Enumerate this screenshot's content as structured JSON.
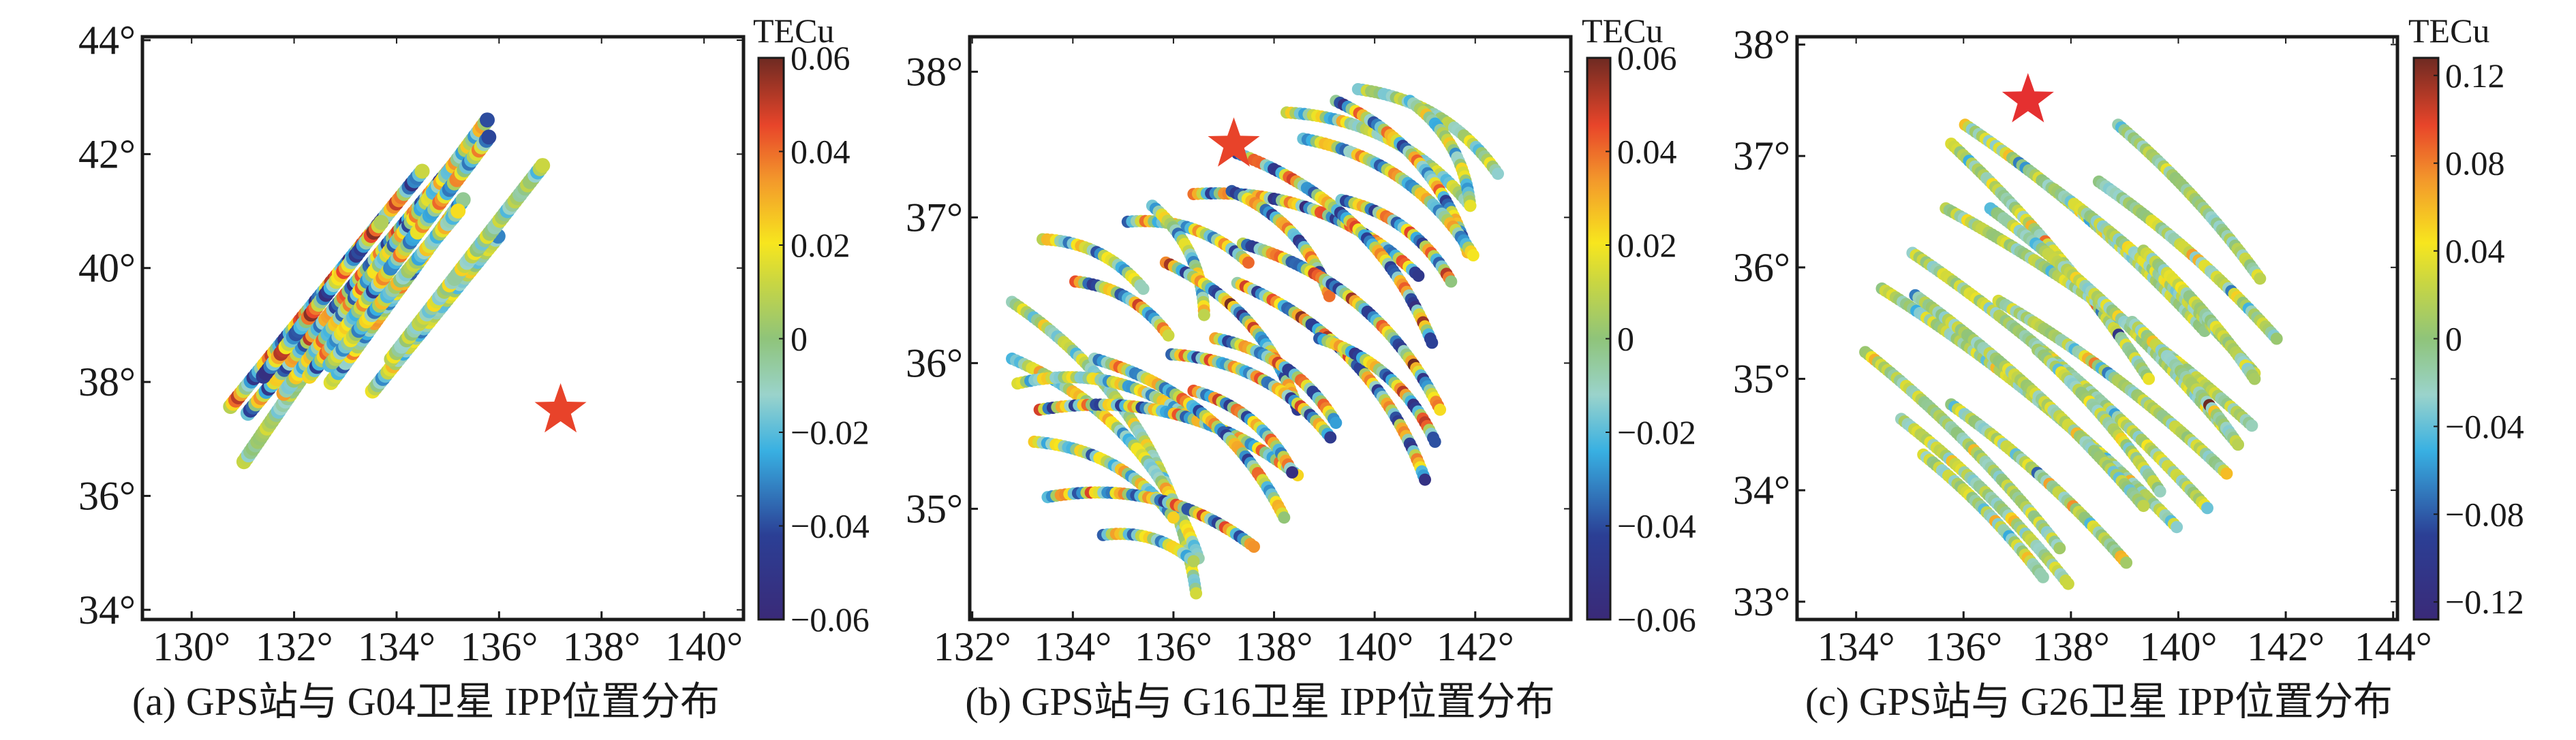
{
  "chart_data": [
    {
      "type": "scatter",
      "caption": "(a) GPS站与 G04卫星 IPP位置分布",
      "xlim": [
        129.04,
        140.77
      ],
      "ylim": [
        33.83,
        44.06
      ],
      "xticks": [
        130,
        132,
        134,
        136,
        138,
        140
      ],
      "xtick_labels": [
        "130°",
        "132°",
        "134°",
        "136°",
        "138°",
        "140°"
      ],
      "yticks": [
        34,
        36,
        38,
        40,
        42,
        44
      ],
      "ytick_labels": [
        "34°",
        "36°",
        "38°",
        "40°",
        "42°",
        "44°"
      ],
      "colorbar": {
        "label": "TECu",
        "clim": [
          -0.06,
          0.06
        ],
        "ticks": [
          0.06,
          0.04,
          0.02,
          0,
          -0.02,
          -0.04,
          -0.06
        ],
        "tick_labels": [
          "0.06",
          "0.04",
          "0.02",
          "0",
          "−0.02",
          "−0.04",
          "−0.06"
        ]
      },
      "epicenter": {
        "lon": 137.2,
        "lat": 37.5,
        "marker": "red star",
        "color": "#e8432a"
      },
      "tracks": [
        {
          "from": [
            130.76,
            37.57
          ],
          "to": [
            134.5,
            41.7
          ],
          "amp": 0.9
        },
        {
          "from": [
            131.1,
            37.45
          ],
          "to": [
            135.2,
            41.9
          ],
          "amp": 0.8
        },
        {
          "from": [
            131.02,
            36.6
          ],
          "to": [
            133.0,
            39.2
          ],
          "amp": 0.15
        },
        {
          "from": [
            131.4,
            38.1
          ],
          "to": [
            133.7,
            40.8
          ],
          "amp": 0.9
        },
        {
          "from": [
            131.8,
            37.8
          ],
          "to": [
            135.77,
            42.6
          ],
          "amp": 0.6
        },
        {
          "from": [
            132.3,
            38.1
          ],
          "to": [
            135.8,
            42.3
          ],
          "amp": 0.7
        },
        {
          "from": [
            132.72,
            37.99
          ],
          "to": [
            135.3,
            41.2
          ],
          "amp": 0.6
        },
        {
          "from": [
            132.7,
            38.3
          ],
          "to": [
            135.2,
            41.0
          ],
          "amp": 0.5
        },
        {
          "from": [
            133.53,
            37.84
          ],
          "to": [
            135.98,
            40.56
          ],
          "amp": 0.45
        },
        {
          "from": [
            133.9,
            38.4
          ],
          "to": [
            136.85,
            41.8
          ],
          "amp": 0.3
        }
      ]
    },
    {
      "type": "scatter",
      "caption": "(b) GPS站与 G16卫星 IPP位置分布",
      "xlim": [
        131.95,
        143.9
      ],
      "ylim": [
        34.24,
        38.24
      ],
      "xticks": [
        132,
        134,
        136,
        138,
        140,
        142
      ],
      "xtick_labels": [
        "132°",
        "134°",
        "136°",
        "138°",
        "140°",
        "142°"
      ],
      "yticks": [
        35,
        36,
        37,
        38
      ],
      "ytick_labels": [
        "35°",
        "36°",
        "37°",
        "38°"
      ],
      "colorbar": {
        "label": "TECu",
        "clim": [
          -0.06,
          0.06
        ],
        "ticks": [
          0.06,
          0.04,
          0.02,
          0,
          -0.02,
          -0.04,
          -0.06
        ],
        "tick_labels": [
          "0.06",
          "0.04",
          "0.02",
          "0",
          "−0.02",
          "−0.04",
          "−0.06"
        ]
      },
      "epicenter": {
        "lon": 137.2,
        "lat": 37.5,
        "marker": "red star",
        "color": "#e8432a"
      },
      "tracks": [
        {
          "from": [
            132.79,
            36.42
          ],
          "to": [
            136.45,
            34.42
          ],
          "amp": 0.3
        },
        {
          "from": [
            132.79,
            36.03
          ],
          "to": [
            136.5,
            34.66
          ],
          "amp": 0.5
        },
        {
          "from": [
            132.9,
            35.86
          ],
          "to": [
            136.23,
            35.65
          ],
          "amp": 0.5
        },
        {
          "from": [
            133.34,
            35.68
          ],
          "to": [
            138.47,
            35.23
          ],
          "amp": 0.8
        },
        {
          "from": [
            133.23,
            35.46
          ],
          "to": [
            136.0,
            34.94
          ],
          "amp": 0.6
        },
        {
          "from": [
            133.5,
            35.08
          ],
          "to": [
            137.6,
            34.74
          ],
          "amp": 0.8
        },
        {
          "from": [
            134.6,
            34.82
          ],
          "to": [
            136.4,
            34.64
          ],
          "amp": 0.6
        },
        {
          "from": [
            133.4,
            36.85
          ],
          "to": [
            135.4,
            36.51
          ],
          "amp": 0.6
        },
        {
          "from": [
            134.05,
            36.56
          ],
          "to": [
            135.9,
            36.19
          ],
          "amp": 0.8
        },
        {
          "from": [
            134.43,
            36.03
          ],
          "to": [
            138.2,
            34.94
          ],
          "amp": 0.8
        },
        {
          "from": [
            135.09,
            36.97
          ],
          "to": [
            137.49,
            36.69
          ],
          "amp": 0.7
        },
        {
          "from": [
            135.58,
            37.08
          ],
          "to": [
            136.61,
            36.33
          ],
          "amp": 0.5
        },
        {
          "from": [
            135.85,
            36.69
          ],
          "to": [
            138.47,
            35.68
          ],
          "amp": 0.9
        },
        {
          "from": [
            136.4,
            37.16
          ],
          "to": [
            140.87,
            36.6
          ],
          "amp": 0.9
        },
        {
          "from": [
            137.16,
            37.18
          ],
          "to": [
            139.1,
            36.46
          ],
          "amp": 0.9
        },
        {
          "from": [
            137.27,
            37.44
          ],
          "to": [
            141.14,
            36.14
          ],
          "amp": 0.9
        },
        {
          "from": [
            138.25,
            37.72
          ],
          "to": [
            141.9,
            37.08
          ],
          "amp": 0.5
        },
        {
          "from": [
            139.23,
            37.8
          ],
          "to": [
            141.85,
            36.76
          ],
          "amp": 0.8
        },
        {
          "from": [
            139.67,
            37.88
          ],
          "to": [
            142.45,
            37.3
          ],
          "amp": 0.3
        },
        {
          "from": [
            140.7,
            37.8
          ],
          "to": [
            141.9,
            37.08
          ],
          "amp": 0.4
        },
        {
          "from": [
            137.38,
            36.82
          ],
          "to": [
            141.3,
            35.68
          ],
          "amp": 0.9
        },
        {
          "from": [
            137.27,
            36.55
          ],
          "to": [
            141.0,
            35.2
          ],
          "amp": 0.9
        },
        {
          "from": [
            136.83,
            36.17
          ],
          "to": [
            139.23,
            35.59
          ],
          "amp": 0.9
        },
        {
          "from": [
            135.96,
            36.06
          ],
          "to": [
            139.12,
            35.49
          ],
          "amp": 0.8
        },
        {
          "from": [
            136.4,
            35.81
          ],
          "to": [
            138.36,
            35.25
          ],
          "amp": 0.9
        },
        {
          "from": [
            138.9,
            36.17
          ],
          "to": [
            141.2,
            35.46
          ],
          "amp": 0.9
        },
        {
          "from": [
            138.58,
            37.54
          ],
          "to": [
            141.96,
            36.74
          ],
          "amp": 0.6
        },
        {
          "from": [
            139.34,
            37.12
          ],
          "to": [
            141.52,
            36.56
          ],
          "amp": 0.8
        }
      ]
    },
    {
      "type": "scatter",
      "caption": "(c) GPS站与 G26卫星 IPP位置分布",
      "xlim": [
        132.9,
        144.08
      ],
      "ylim": [
        32.84,
        38.07
      ],
      "xticks": [
        134,
        136,
        138,
        140,
        142,
        144
      ],
      "xtick_labels": [
        "134°",
        "136°",
        "138°",
        "140°",
        "142°",
        "144°"
      ],
      "yticks": [
        33,
        34,
        35,
        36,
        37,
        38
      ],
      "ytick_labels": [
        "33°",
        "34°",
        "35°",
        "36°",
        "37°",
        "38°"
      ],
      "colorbar": {
        "label": "TECu",
        "clim": [
          -0.128,
          0.128
        ],
        "ticks": [
          0.12,
          0.08,
          0.04,
          0,
          -0.04,
          -0.08,
          -0.12
        ],
        "tick_labels": [
          "0.12",
          "0.08",
          "0.04",
          "0",
          "−0.04",
          "−0.08",
          "−0.12"
        ]
      },
      "epicenter": {
        "lon": 137.2,
        "lat": 37.5,
        "marker": "red star",
        "color": "#e53030"
      },
      "tracks": [
        {
          "from": [
            136.03,
            37.28
          ],
          "to": [
            140.49,
            35.43
          ],
          "amp": 0.6
        },
        {
          "from": [
            135.77,
            37.11
          ],
          "to": [
            139.45,
            35.0
          ],
          "amp": 0.7
        },
        {
          "from": [
            135.67,
            36.53
          ],
          "to": [
            141.37,
            34.58
          ],
          "amp": 0.6
        },
        {
          "from": [
            136.5,
            36.53
          ],
          "to": [
            141.11,
            34.41
          ],
          "amp": 0.4
        },
        {
          "from": [
            137.69,
            36.7
          ],
          "to": [
            141.42,
            35.05
          ],
          "amp": 0.3
        },
        {
          "from": [
            138.52,
            36.77
          ],
          "to": [
            141.83,
            35.36
          ],
          "amp": 0.6
        },
        {
          "from": [
            138.88,
            37.28
          ],
          "to": [
            141.52,
            35.9
          ],
          "amp": 0.25
        },
        {
          "from": [
            135.05,
            36.13
          ],
          "to": [
            140.54,
            33.84
          ],
          "amp": 0.35
        },
        {
          "from": [
            134.48,
            35.81
          ],
          "to": [
            139.97,
            33.67
          ],
          "amp": 0.5
        },
        {
          "from": [
            135.1,
            35.75
          ],
          "to": [
            139.35,
            33.86
          ],
          "amp": 0.6
        },
        {
          "from": [
            134.17,
            35.24
          ],
          "to": [
            137.79,
            33.48
          ],
          "amp": 0.35
        },
        {
          "from": [
            134.84,
            34.64
          ],
          "to": [
            137.95,
            33.16
          ],
          "amp": 0.35
        },
        {
          "from": [
            135.25,
            34.32
          ],
          "to": [
            137.48,
            33.22
          ],
          "amp": 0.4
        },
        {
          "from": [
            135.77,
            34.77
          ],
          "to": [
            139.03,
            33.35
          ],
          "amp": 0.5
        },
        {
          "from": [
            136.65,
            35.7
          ],
          "to": [
            140.9,
            34.15
          ],
          "amp": 0.6
        },
        {
          "from": [
            139.35,
            36.15
          ],
          "to": [
            141.42,
            35.0
          ],
          "amp": 0.3
        },
        {
          "from": [
            137.38,
            35.26
          ],
          "to": [
            139.66,
            33.99
          ],
          "amp": 0.4
        },
        {
          "from": [
            139.14,
            35.51
          ],
          "to": [
            141.11,
            34.41
          ],
          "amp": 1.0
        }
      ]
    }
  ]
}
